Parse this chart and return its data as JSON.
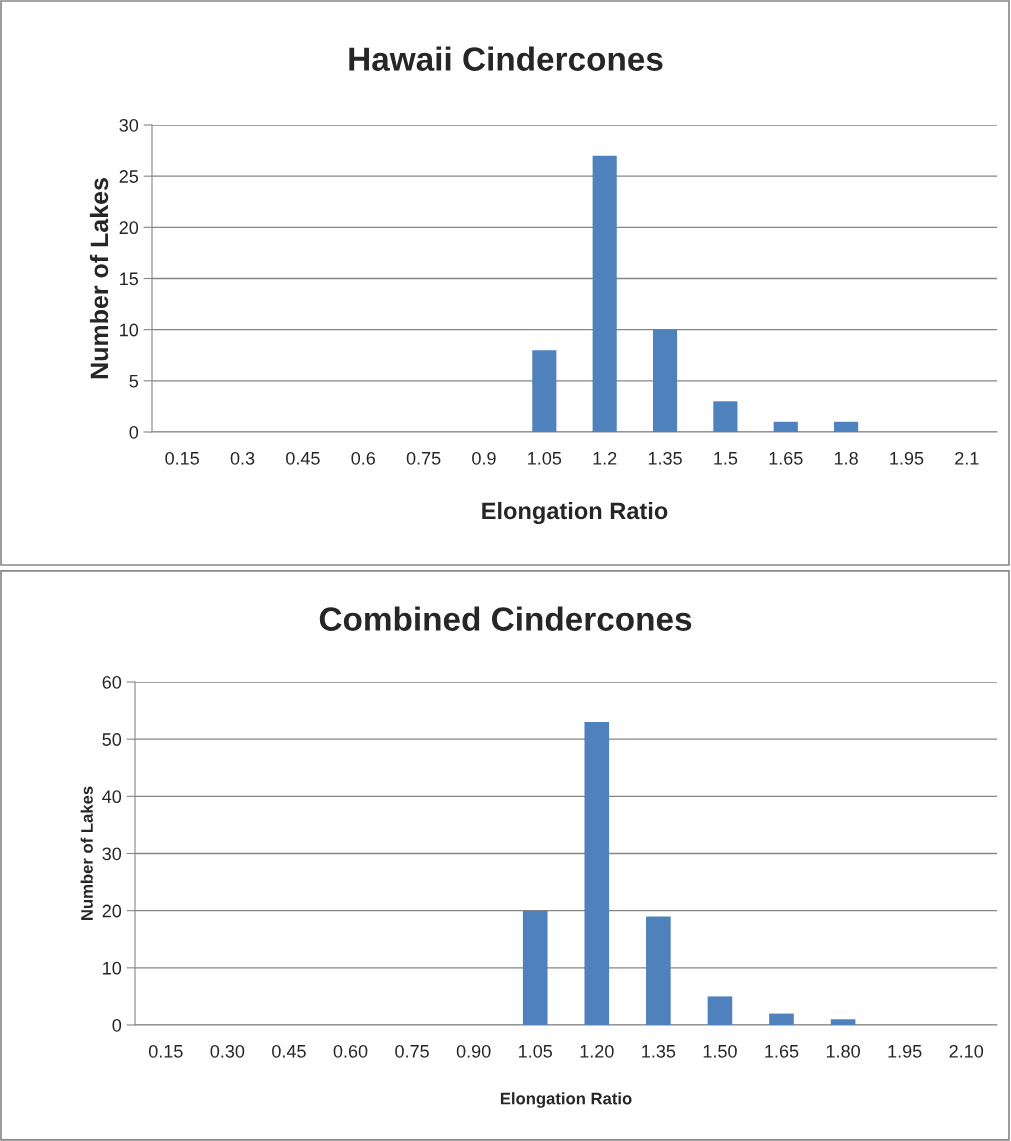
{
  "chart_data": [
    {
      "type": "bar",
      "title": "Hawaii Cindercones",
      "xlabel": "Elongation Ratio",
      "ylabel": "Number of Lakes",
      "categories": [
        "0.15",
        "0.3",
        "0.45",
        "0.6",
        "0.75",
        "0.9",
        "1.05",
        "1.2",
        "1.35",
        "1.5",
        "1.65",
        "1.8",
        "1.95",
        "2.1"
      ],
      "values": [
        0,
        0,
        0,
        0,
        0,
        0,
        8,
        27,
        10,
        3,
        1,
        1,
        0,
        0
      ],
      "color": "#4f81bd",
      "ylim": [
        0,
        30
      ],
      "yticks": [
        0,
        5,
        10,
        15,
        20,
        25,
        30
      ],
      "grid": "y",
      "legend": false
    },
    {
      "type": "bar",
      "title": "Combined Cindercones",
      "xlabel": "Elongation Ratio",
      "ylabel": "Number of Lakes",
      "categories": [
        "0.15",
        "0.30",
        "0.45",
        "0.60",
        "0.75",
        "0.90",
        "1.05",
        "1.20",
        "1.35",
        "1.50",
        "1.65",
        "1.80",
        "1.95",
        "2.10"
      ],
      "values": [
        0,
        0,
        0,
        0,
        0,
        0,
        20,
        53,
        19,
        5,
        2,
        1,
        0,
        0
      ],
      "color": "#4f81bd",
      "ylim": [
        0,
        60
      ],
      "yticks": [
        0,
        10,
        20,
        30,
        40,
        50,
        60
      ],
      "grid": "y",
      "legend": false
    }
  ]
}
